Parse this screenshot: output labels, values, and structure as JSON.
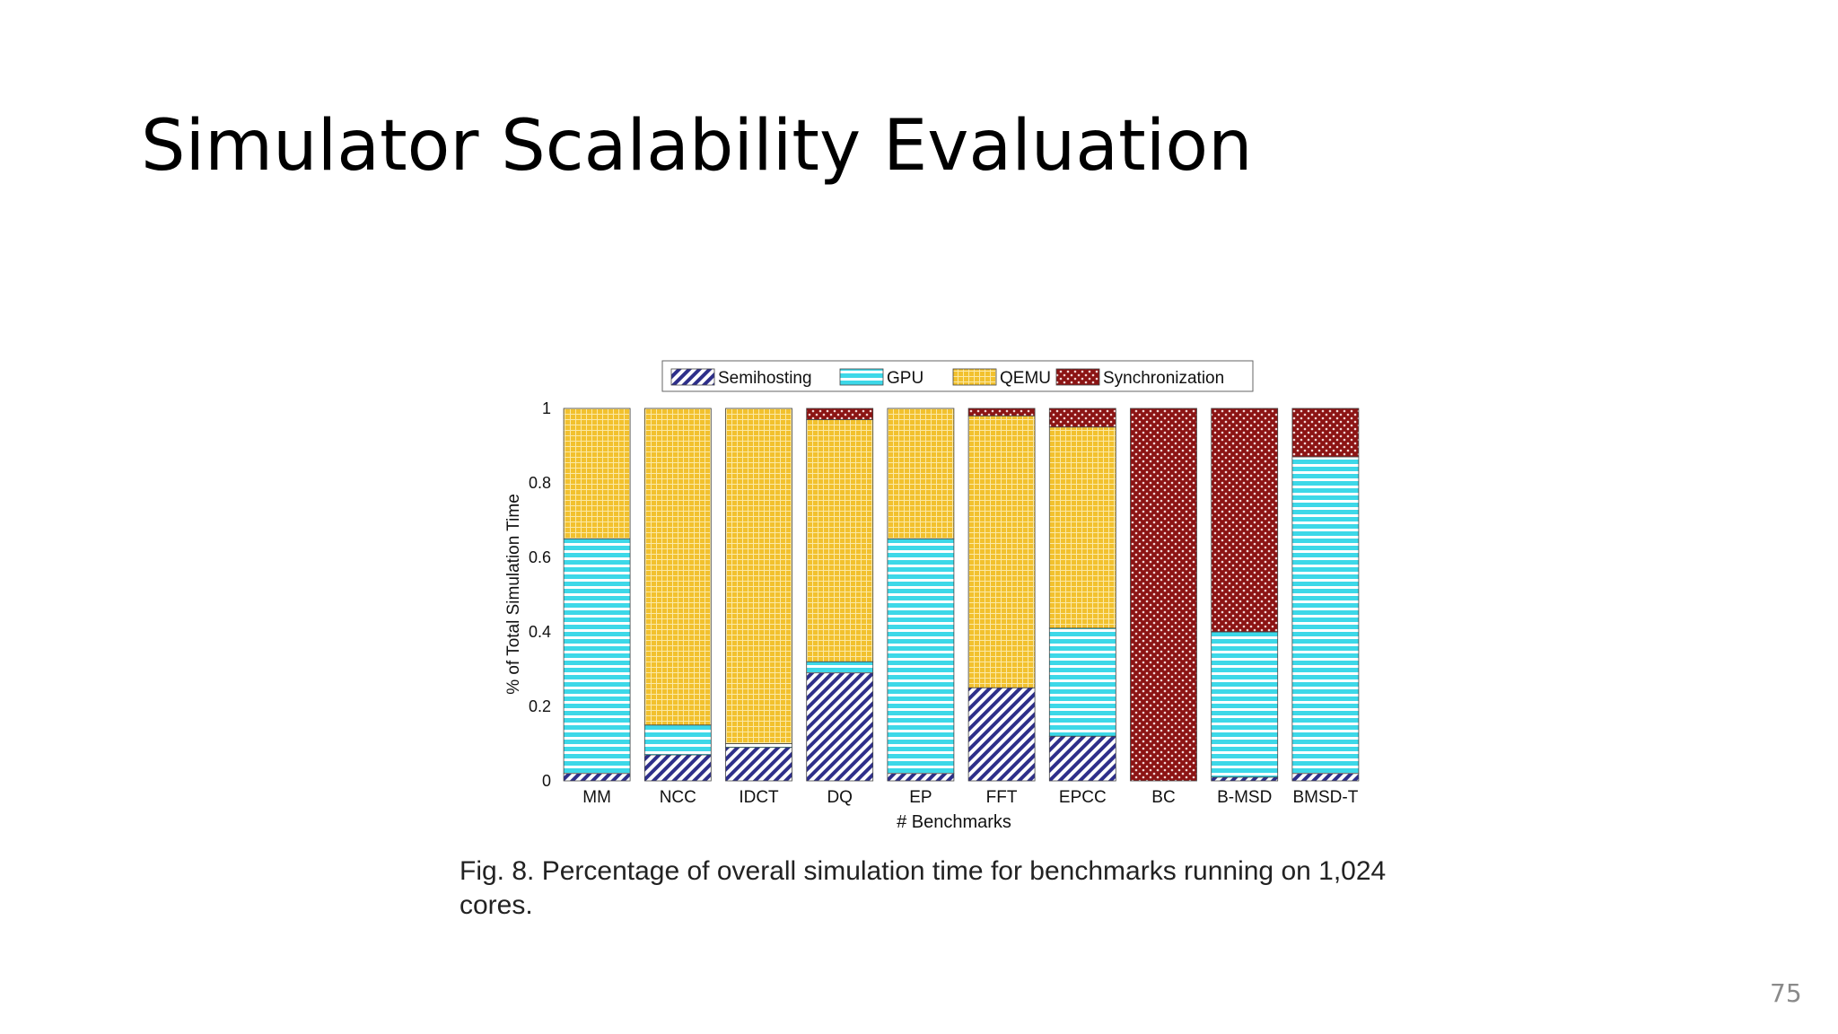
{
  "slide": {
    "title": "Simulator Scalability Evaluation",
    "page_number": "75"
  },
  "figure": {
    "caption": "Fig. 8. Percentage of overall simulation time for benchmarks running on 1,024 cores."
  },
  "chart_data": {
    "type": "bar",
    "stacked": true,
    "xlabel": "# Benchmarks",
    "ylabel": "% of Total Simulation Time",
    "ylim": [
      0,
      1
    ],
    "yticks": [
      0,
      0.2,
      0.4,
      0.6,
      0.8,
      1
    ],
    "ytick_labels": [
      "0",
      "0.2",
      "0.4",
      "0.6",
      "0.8",
      "1"
    ],
    "legend_position": "top-center",
    "categories": [
      "MM",
      "NCC",
      "IDCT",
      "DQ",
      "EP",
      "FFT",
      "EPCC",
      "BC",
      "B-MSD",
      "BMSD-T"
    ],
    "series": [
      {
        "name": "Semihosting",
        "color": "#2e2f8a",
        "pattern": "diagonal-hatch",
        "values": [
          0.02,
          0.07,
          0.09,
          0.29,
          0.02,
          0.25,
          0.12,
          0.0,
          0.01,
          0.02
        ]
      },
      {
        "name": "GPU",
        "color": "#3dd8e8",
        "pattern": "horizontal-lines",
        "values": [
          0.63,
          0.08,
          0.01,
          0.03,
          0.63,
          0.0,
          0.29,
          0.0,
          0.39,
          0.85
        ]
      },
      {
        "name": "QEMU",
        "color": "#f2c12e",
        "pattern": "grid",
        "values": [
          0.35,
          0.85,
          0.9,
          0.65,
          0.35,
          0.73,
          0.54,
          0.0,
          0.0,
          0.0
        ]
      },
      {
        "name": "Synchronization",
        "color": "#8b1414",
        "pattern": "dots",
        "values": [
          0.0,
          0.0,
          0.0,
          0.03,
          0.0,
          0.02,
          0.05,
          1.0,
          0.6,
          0.13
        ]
      }
    ]
  }
}
